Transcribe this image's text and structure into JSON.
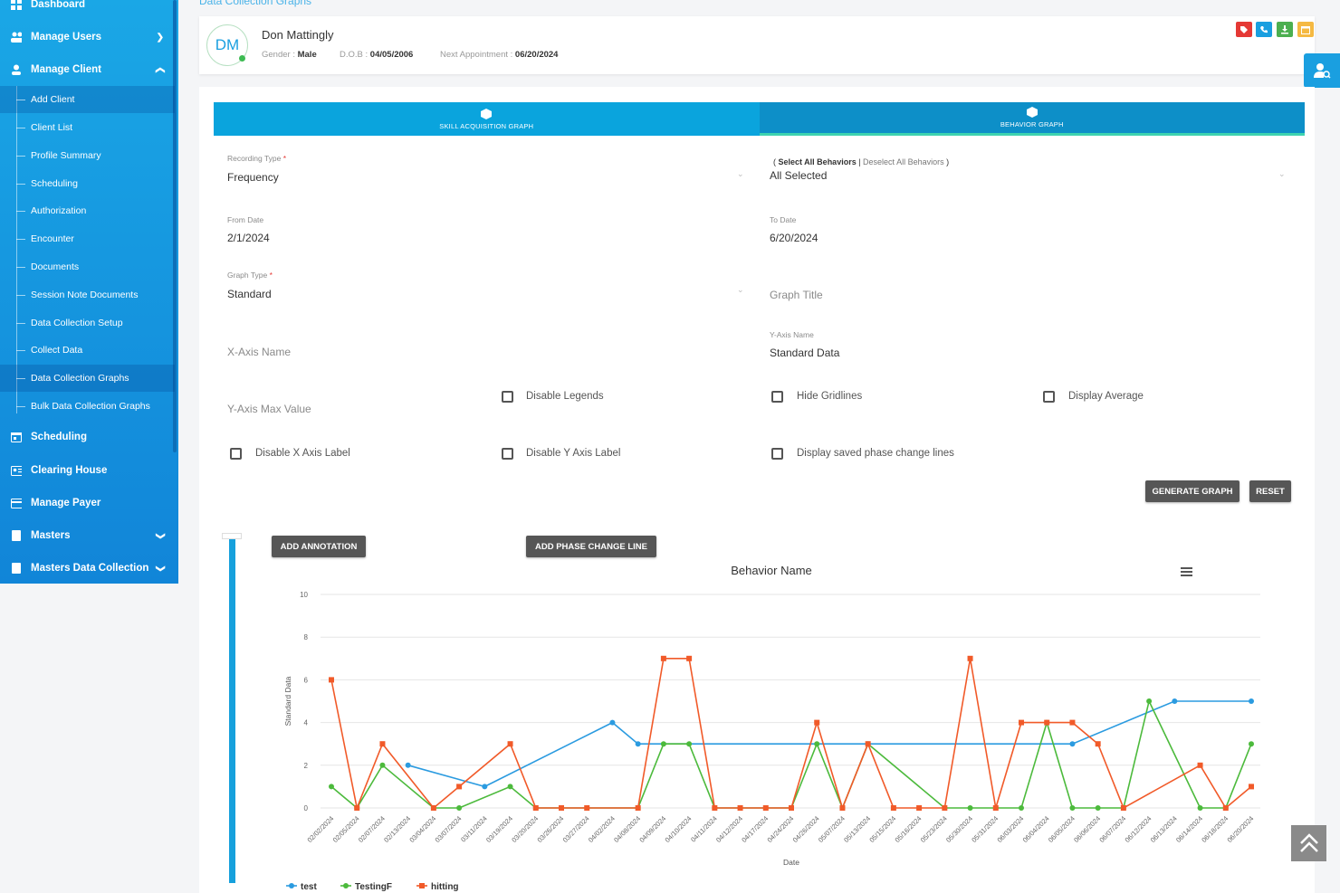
{
  "breadcrumb": "Data Collection Graphs",
  "sidebar": {
    "items": [
      {
        "label": "Dashboard",
        "icon": "dashboard-icon"
      },
      {
        "label": "Manage Users",
        "icon": "users-icon"
      },
      {
        "label": "Manage Client",
        "icon": "user-icon"
      },
      {
        "label": "Scheduling",
        "icon": "calendar-icon"
      },
      {
        "label": "Clearing House",
        "icon": "id-card-icon"
      },
      {
        "label": "Manage Payer",
        "icon": "card-icon"
      },
      {
        "label": "Masters",
        "icon": "file-icon"
      },
      {
        "label": "Masters Data Collection",
        "icon": "file-icon"
      }
    ],
    "sub_items": [
      "Add Client",
      "Client List",
      "Profile Summary",
      "Scheduling",
      "Authorization",
      "Encounter",
      "Documents",
      "Session Note Documents",
      "Data Collection Setup",
      "Collect Data",
      "Data Collection Graphs",
      "Bulk Data Collection Graphs"
    ]
  },
  "patient": {
    "initials": "DM",
    "name": "Don Mattingly",
    "gender_label": "Gender :",
    "gender": "Male",
    "dob_label": "D.O.B :",
    "dob": "04/05/2006",
    "appt_label": "Next Appointment :",
    "appt": "06/20/2024"
  },
  "tabs": {
    "skill": "SKILL ACQUISITION GRAPH",
    "behavior": "BEHAVIOR GRAPH"
  },
  "form": {
    "recording_type_label": "Recording Type",
    "recording_type": "Frequency",
    "select_all": "Select All Behaviors",
    "deselect_all": "Deselect All Behaviors",
    "behaviors_value": "All Selected",
    "from_date_label": "From Date",
    "from_date": "2/1/2024",
    "to_date_label": "To Date",
    "to_date": "6/20/2024",
    "graph_type_label": "Graph Type",
    "graph_type": "Standard",
    "graph_title_placeholder": "Graph Title",
    "x_axis_name_placeholder": "X-Axis Name",
    "y_axis_name_label": "Y-Axis Name",
    "y_axis_name": "Standard Data",
    "y_axis_max_placeholder": "Y-Axis Max Value",
    "disable_legends": "Disable Legends",
    "hide_gridlines": "Hide Gridlines",
    "display_average": "Display Average",
    "disable_x_label": "Disable X Axis Label",
    "disable_y_label": "Disable Y Axis Label",
    "display_phase_lines": "Display saved phase change lines",
    "generate": "GENERATE GRAPH",
    "reset": "RESET",
    "add_annotation": "ADD ANNOTATION",
    "add_phase": "ADD PHASE CHANGE LINE"
  },
  "chart_data": {
    "type": "line",
    "title": "Behavior Name",
    "xlabel": "Date",
    "ylabel": "Standard Data",
    "ylim": [
      0,
      10
    ],
    "yticks": [
      0,
      2,
      4,
      6,
      8,
      10
    ],
    "categories": [
      "02/02/2024",
      "02/05/2024",
      "02/07/2024",
      "02/13/2024",
      "03/04/2024",
      "03/07/2024",
      "03/11/2024",
      "03/19/2024",
      "03/20/2024",
      "03/26/2024",
      "03/27/2024",
      "04/02/2024",
      "04/08/2024",
      "04/09/2024",
      "04/10/2024",
      "04/11/2024",
      "04/12/2024",
      "04/17/2024",
      "04/24/2024",
      "04/26/2024",
      "05/07/2024",
      "05/13/2024",
      "05/15/2024",
      "05/16/2024",
      "05/23/2024",
      "05/30/2024",
      "05/31/2024",
      "06/03/2024",
      "06/04/2024",
      "06/05/2024",
      "06/06/2024",
      "06/07/2024",
      "06/12/2024",
      "06/13/2024",
      "06/14/2024",
      "06/18/2024",
      "06/20/2024"
    ],
    "series": [
      {
        "name": "test",
        "color": "#2b9be0",
        "values": [
          null,
          null,
          null,
          2,
          null,
          null,
          1,
          null,
          null,
          null,
          null,
          4,
          3,
          null,
          null,
          null,
          null,
          null,
          null,
          null,
          null,
          null,
          null,
          null,
          null,
          null,
          null,
          null,
          null,
          3,
          null,
          null,
          null,
          5,
          null,
          null,
          5
        ]
      },
      {
        "name": "TestingF",
        "color": "#4cba3c",
        "values": [
          1,
          0,
          2,
          null,
          0,
          0,
          null,
          1,
          0,
          null,
          null,
          null,
          0,
          3,
          3,
          0,
          null,
          null,
          0,
          3,
          0,
          3,
          null,
          null,
          0,
          0,
          0,
          0,
          4,
          0,
          0,
          0,
          5,
          null,
          0,
          0,
          3
        ]
      },
      {
        "name": "hitting",
        "color": "#f15a29",
        "values": [
          6,
          0,
          3,
          null,
          0,
          1,
          null,
          3,
          0,
          0,
          0,
          null,
          0,
          7,
          7,
          0,
          0,
          0,
          0,
          4,
          0,
          3,
          0,
          0,
          0,
          7,
          0,
          4,
          4,
          4,
          3,
          0,
          null,
          null,
          2,
          0,
          1
        ]
      }
    ]
  }
}
